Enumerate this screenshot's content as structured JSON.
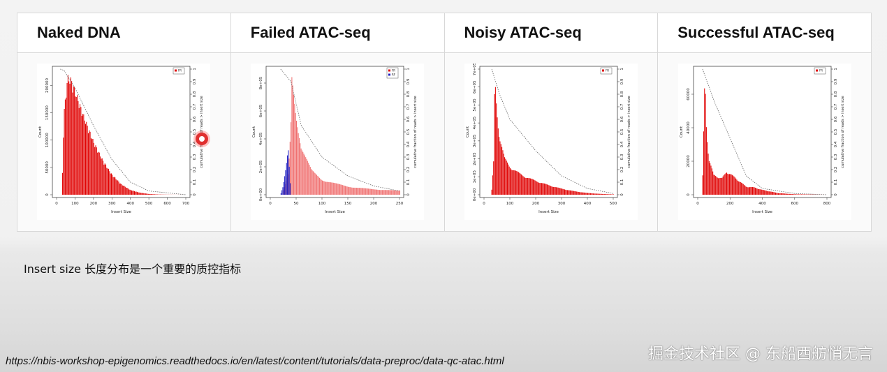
{
  "panels": [
    {
      "title": "Naked DNA"
    },
    {
      "title": "Failed ATAC-seq"
    },
    {
      "title": "Noisy ATAC-seq"
    },
    {
      "title": "Successful ATAC-seq"
    }
  ],
  "caption": "Insert size 长度分布是一个重要的质控指标",
  "source_url": "https://nbis-workshop-epigenomics.readthedocs.io/en/latest/content/tutorials/data-preproc/data-qc-atac.html",
  "watermark": "掘金技术社区 @ 东船西舫悄无言",
  "chart_data": [
    {
      "type": "bar",
      "panel": "Naked DNA",
      "xlabel": "Insert Size",
      "ylabel": "Count",
      "y2label": "cumulative fraction of reads > insert size",
      "xlim": [
        0,
        700
      ],
      "ylim": [
        0,
        230000
      ],
      "xticks": [
        0,
        100,
        200,
        300,
        400,
        500,
        600,
        700
      ],
      "yticks": [
        0,
        50000,
        100000,
        150000,
        200000
      ],
      "ytick_labels": [
        "0",
        "50000",
        "100000",
        "150000",
        "200000"
      ],
      "y2ticks": [
        "0",
        "0.1",
        "0.2",
        "0.3",
        "0.4",
        "0.5",
        "0.6",
        "0.7",
        "0.8",
        "0.9",
        "1"
      ],
      "legend": [
        "FR"
      ],
      "legend_colors": [
        "#e00000"
      ],
      "series_color": "#e00000",
      "profile": {
        "x": [
          30,
          40,
          60,
          80,
          100,
          150,
          200,
          250,
          300,
          350,
          400,
          450,
          500,
          550,
          600,
          700
        ],
        "y": [
          5000,
          150000,
          220000,
          215000,
          195000,
          145000,
          100000,
          65000,
          38000,
          20000,
          9000,
          4000,
          1500,
          500,
          200,
          0
        ]
      },
      "cumulative": {
        "x": [
          20,
          40,
          100,
          200,
          300,
          400,
          500,
          700
        ],
        "y": [
          1,
          0.99,
          0.85,
          0.55,
          0.28,
          0.1,
          0.03,
          0
        ]
      }
    },
    {
      "type": "bar",
      "panel": "Failed ATAC-seq",
      "xlabel": "Insert Size",
      "ylabel": "Count",
      "y2label": "cumulative fraction of reads > insert size",
      "xlim": [
        0,
        250
      ],
      "ylim": [
        0,
        900000
      ],
      "xticks": [
        0,
        50,
        100,
        150,
        200,
        250
      ],
      "yticks": [
        0,
        200000,
        400000,
        600000,
        800000
      ],
      "ytick_labels": [
        "0e+00",
        "2e+05",
        "4e+05",
        "6e+05",
        "8e+05"
      ],
      "y2ticks": [
        "0",
        "0.1",
        "0.2",
        "0.3",
        "0.4",
        "0.5",
        "0.6",
        "0.7",
        "0.8",
        "0.9",
        "1"
      ],
      "legend": [
        "FR",
        "RF"
      ],
      "legend_colors": [
        "#e00000",
        "#2020c0"
      ],
      "series_color": "#f07070",
      "profile": {
        "x": [
          25,
          35,
          40,
          42,
          50,
          60,
          80,
          100,
          150,
          200,
          250
        ],
        "y": [
          20000,
          150000,
          500000,
          880000,
          600000,
          350000,
          180000,
          110000,
          60000,
          40000,
          30000
        ]
      },
      "rf_profile": {
        "x": [
          20,
          25,
          30,
          35,
          40
        ],
        "y": [
          0,
          60000,
          180000,
          330000,
          0
        ]
      },
      "cumulative": {
        "x": [
          20,
          40,
          60,
          100,
          150,
          200,
          250
        ],
        "y": [
          1,
          0.9,
          0.55,
          0.3,
          0.15,
          0.07,
          0.03
        ]
      }
    },
    {
      "type": "bar",
      "panel": "Noisy ATAC-seq",
      "xlabel": "Insert Size",
      "ylabel": "Count",
      "y2label": "cumulative fraction of reads > insert size",
      "xlim": [
        0,
        500
      ],
      "ylim": [
        0,
        700000
      ],
      "xticks": [
        0,
        100,
        200,
        300,
        400,
        500
      ],
      "yticks": [
        0,
        100000,
        200000,
        300000,
        400000,
        500000,
        600000,
        700000
      ],
      "ytick_labels": [
        "0e+00",
        "1e+05",
        "2e+05",
        "3e+05",
        "4e+05",
        "5e+05",
        "6e+05",
        "7e+05"
      ],
      "y2ticks": [
        "0",
        "0.1",
        "0.2",
        "0.3",
        "0.4",
        "0.5",
        "0.6",
        "0.7",
        "0.8",
        "0.9",
        "1"
      ],
      "legend": [
        "FR"
      ],
      "legend_colors": [
        "#e00000"
      ],
      "series_color": "#e00000",
      "profile": {
        "x": [
          30,
          38,
          42,
          50,
          60,
          80,
          100,
          150,
          200,
          250,
          300,
          350,
          400,
          450,
          500
        ],
        "y": [
          20000,
          200000,
          690000,
          500000,
          330000,
          210000,
          160000,
          110000,
          80000,
          55000,
          35000,
          20000,
          10000,
          5000,
          2000
        ]
      },
      "cumulative": {
        "x": [
          30,
          60,
          100,
          200,
          300,
          400,
          500
        ],
        "y": [
          1,
          0.8,
          0.6,
          0.35,
          0.15,
          0.05,
          0.01
        ]
      }
    },
    {
      "type": "bar",
      "panel": "Successful ATAC-seq",
      "xlabel": "Insert Size",
      "ylabel": "Count",
      "y2label": "cumulative fraction of reads > insert size",
      "xlim": [
        0,
        800
      ],
      "ylim": [
        0,
        75000
      ],
      "xticks": [
        0,
        200,
        400,
        600,
        800
      ],
      "yticks": [
        0,
        20000,
        40000,
        60000
      ],
      "ytick_labels": [
        "0",
        "20000",
        "40000",
        "60000"
      ],
      "y2ticks": [
        "0",
        "0.1",
        "0.2",
        "0.3",
        "0.4",
        "0.5",
        "0.6",
        "0.7",
        "0.8",
        "0.9",
        "1"
      ],
      "legend": [
        "FR"
      ],
      "legend_colors": [
        "#e00000"
      ],
      "series_color": "#e00000",
      "profile": {
        "x": [
          30,
          45,
          55,
          70,
          100,
          150,
          180,
          200,
          250,
          300,
          350,
          400,
          500,
          600,
          800
        ],
        "y": [
          5000,
          74000,
          40000,
          22000,
          12000,
          10000,
          14000,
          13000,
          9000,
          5000,
          4500,
          3000,
          1000,
          300,
          0
        ]
      },
      "cumulative": {
        "x": [
          30,
          100,
          200,
          300,
          400,
          600,
          800
        ],
        "y": [
          1,
          0.75,
          0.45,
          0.15,
          0.05,
          0.01,
          0
        ]
      }
    }
  ]
}
